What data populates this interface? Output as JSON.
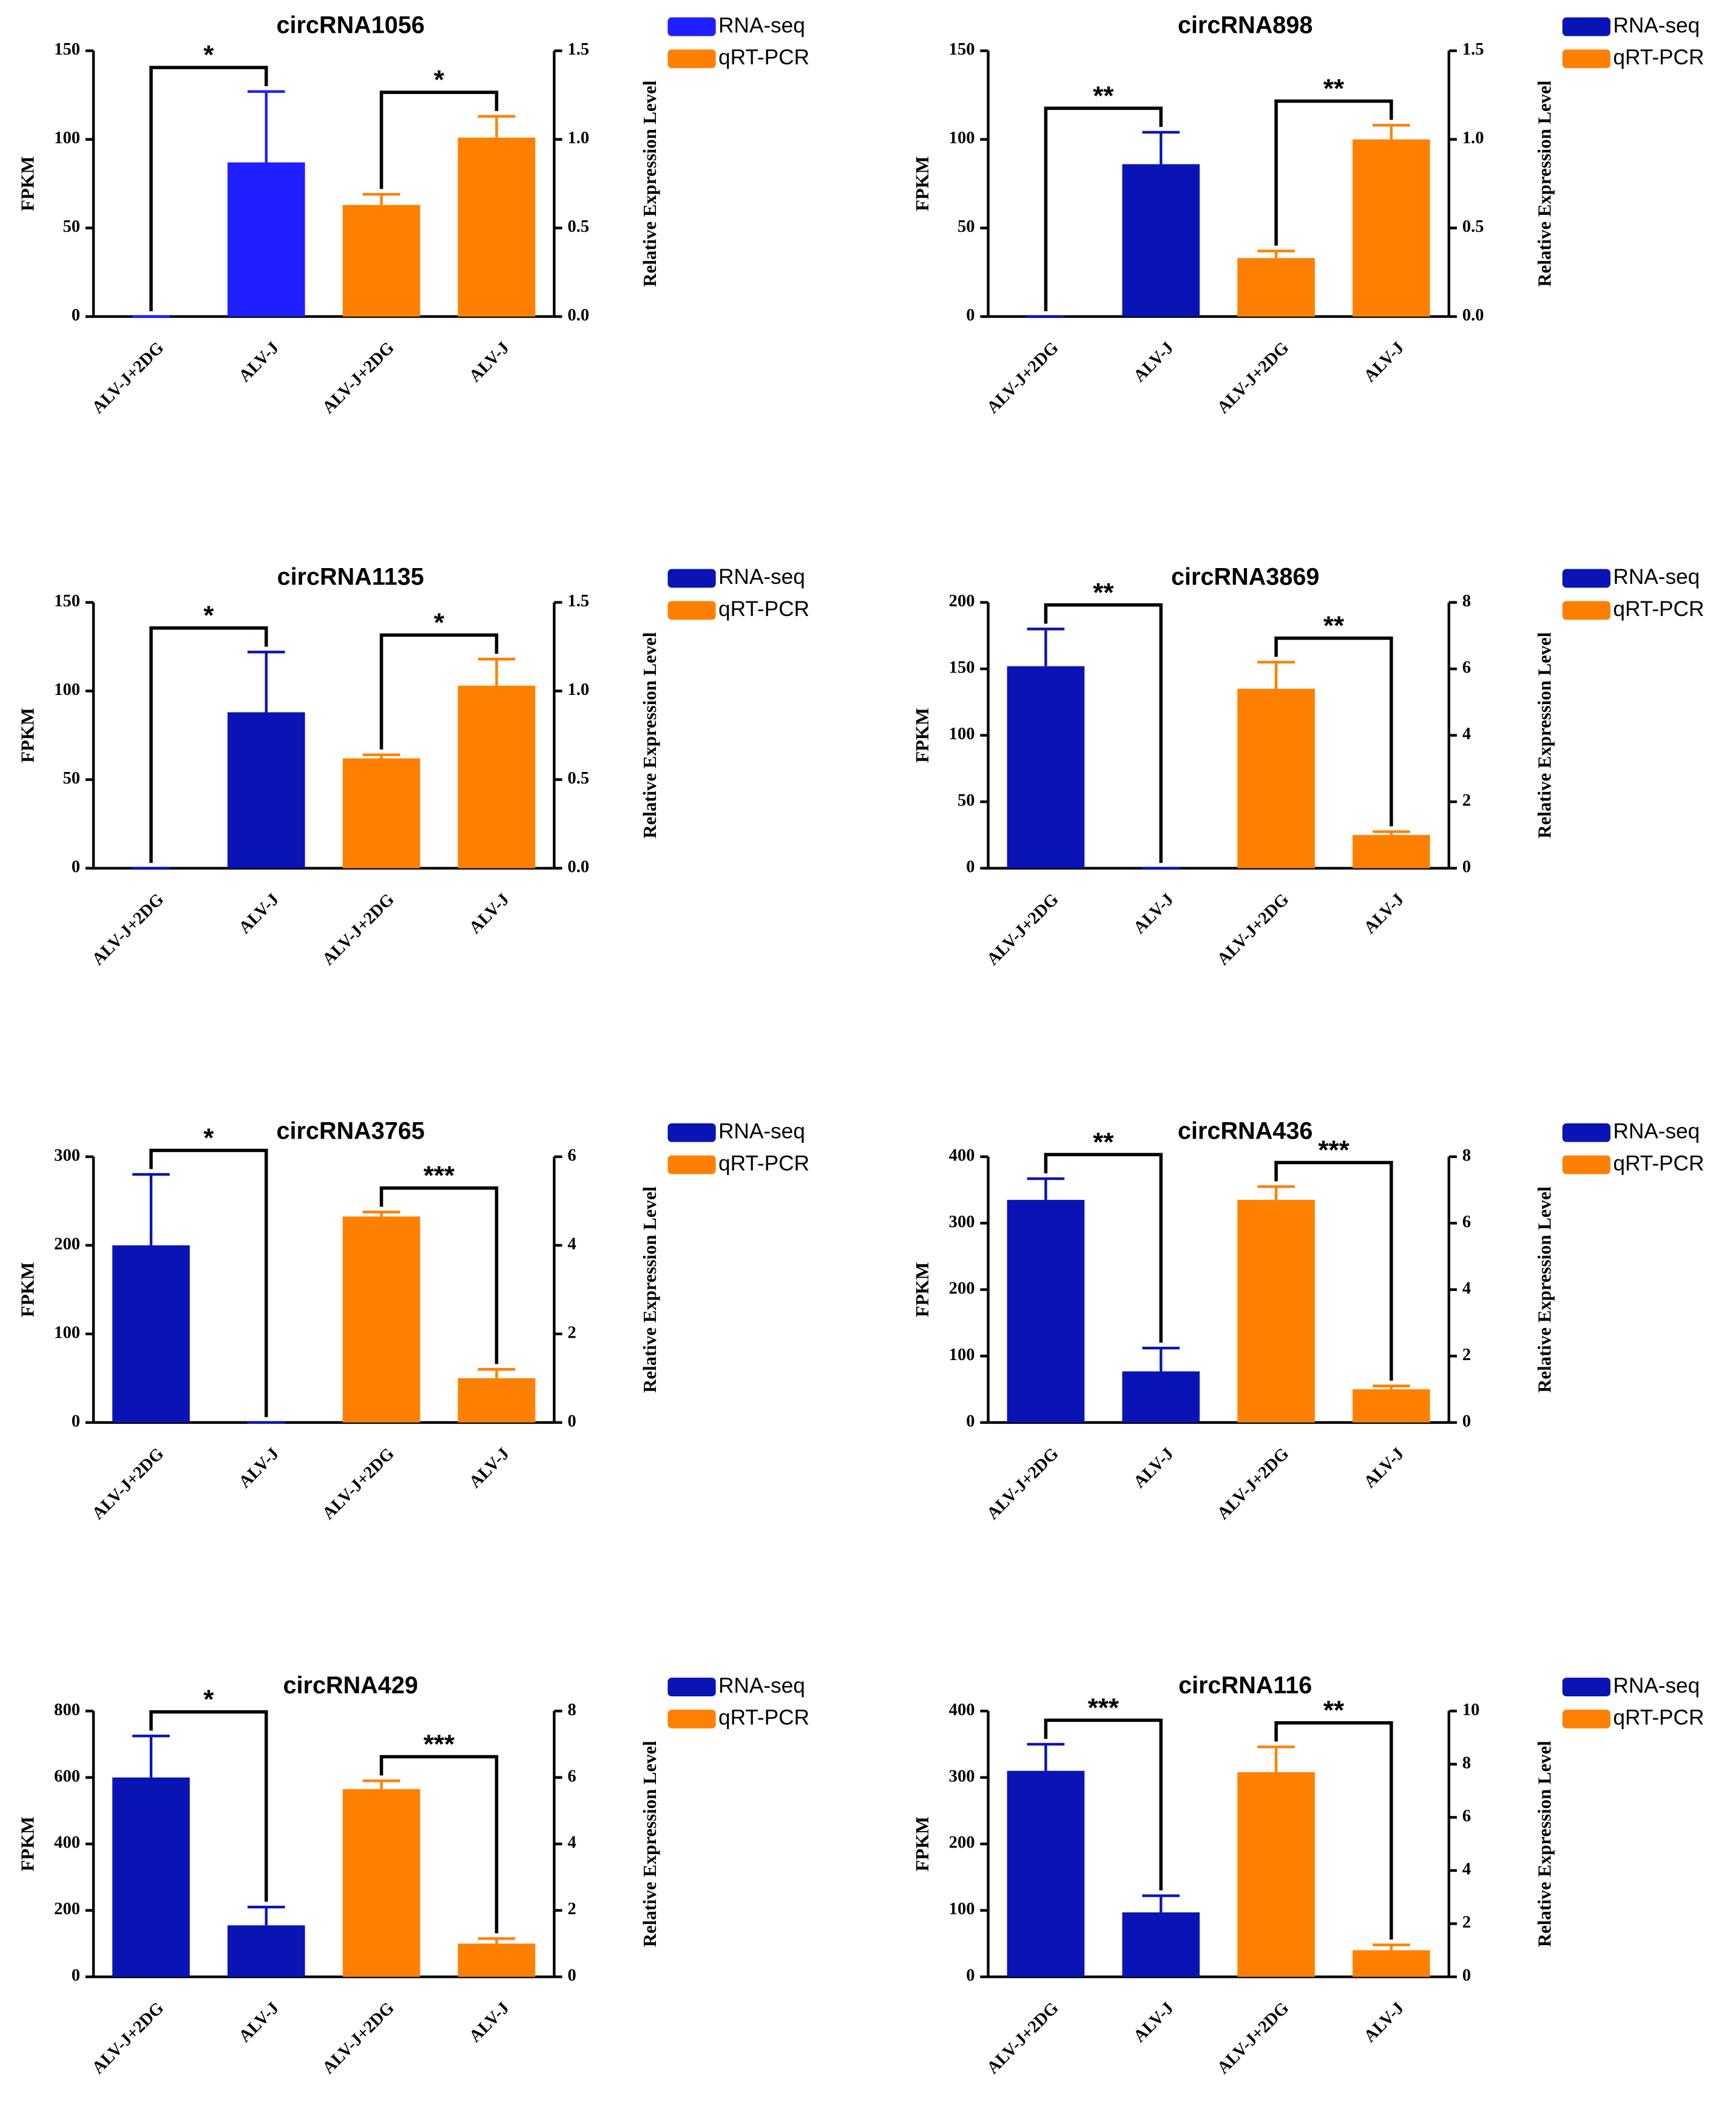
{
  "chart_data": [
    {
      "type": "bar",
      "title": "circRNA1056",
      "ylabel": "FPKM",
      "y2label": "Relative Expression Level",
      "categories": [
        "ALV-J+2DG",
        "ALV-J",
        "ALV-J+2DG",
        "ALV-J"
      ],
      "series": [
        {
          "name": "RNA-seq",
          "color": "#1f1fff",
          "axis": "y",
          "values": [
            0,
            87,
            null,
            null
          ],
          "errors": [
            0,
            40,
            null,
            null
          ]
        },
        {
          "name": "qRT-PCR",
          "color": "#ff8000",
          "axis": "y2",
          "values": [
            null,
            null,
            0.63,
            1.01
          ],
          "errors": [
            null,
            null,
            0.06,
            0.12
          ]
        }
      ],
      "annotations": [
        {
          "text": "*",
          "from": 0,
          "to": 1
        },
        {
          "text": "*",
          "from": 2,
          "to": 3
        }
      ],
      "ylim": [
        0,
        150
      ],
      "yticks": [
        0,
        50,
        100,
        150
      ],
      "y2lim": [
        0,
        1.5
      ],
      "y2ticks": [
        {
          "value": 0,
          "label": "0.0"
        },
        0.5,
        {
          "value": 1,
          "label": "1.0"
        },
        1.5
      ]
    },
    {
      "type": "bar",
      "title": "circRNA898",
      "ylabel": "FPKM",
      "y2label": "Relative Expression Level",
      "categories": [
        "ALV-J+2DG",
        "ALV-J",
        "ALV-J+2DG",
        "ALV-J"
      ],
      "series": [
        {
          "name": "RNA-seq",
          "color": "#0a14b4",
          "axis": "y",
          "values": [
            0,
            86,
            null,
            null
          ],
          "errors": [
            0,
            18,
            null,
            null
          ]
        },
        {
          "name": "qRT-PCR",
          "color": "#ff8000",
          "axis": "y2",
          "values": [
            null,
            null,
            0.33,
            1.0
          ],
          "errors": [
            null,
            null,
            0.04,
            0.08
          ]
        }
      ],
      "annotations": [
        {
          "text": "**",
          "from": 0,
          "to": 1
        },
        {
          "text": "**",
          "from": 2,
          "to": 3
        }
      ],
      "ylim": [
        0,
        150
      ],
      "yticks": [
        0,
        50,
        100,
        150
      ],
      "y2lim": [
        0,
        1.5
      ],
      "y2ticks": [
        {
          "value": 0,
          "label": "0.0"
        },
        0.5,
        {
          "value": 1,
          "label": "1.0"
        },
        1.5
      ]
    },
    {
      "type": "bar",
      "title": "circRNA1135",
      "ylabel": "FPKM",
      "y2label": "Relative Expression Level",
      "categories": [
        "ALV-J+2DG",
        "ALV-J",
        "ALV-J+2DG",
        "ALV-J"
      ],
      "series": [
        {
          "name": "RNA-seq",
          "color": "#0a14b4",
          "axis": "y",
          "values": [
            0,
            88,
            null,
            null
          ],
          "errors": [
            0,
            34,
            null,
            null
          ]
        },
        {
          "name": "qRT-PCR",
          "color": "#ff8000",
          "axis": "y2",
          "values": [
            null,
            null,
            0.62,
            1.03
          ],
          "errors": [
            null,
            null,
            0.02,
            0.15
          ]
        }
      ],
      "annotations": [
        {
          "text": "*",
          "from": 0,
          "to": 1
        },
        {
          "text": "*",
          "from": 2,
          "to": 3
        }
      ],
      "ylim": [
        0,
        150
      ],
      "yticks": [
        0,
        50,
        100,
        150
      ],
      "y2lim": [
        0,
        1.5
      ],
      "y2ticks": [
        {
          "value": 0,
          "label": "0.0"
        },
        0.5,
        {
          "value": 1,
          "label": "1.0"
        },
        1.5
      ]
    },
    {
      "type": "bar",
      "title": "circRNA3869",
      "ylabel": "FPKM",
      "y2label": "Relative Expression Level",
      "categories": [
        "ALV-J+2DG",
        "ALV-J",
        "ALV-J+2DG",
        "ALV-J"
      ],
      "series": [
        {
          "name": "RNA-seq",
          "color": "#0a14b4",
          "axis": "y",
          "values": [
            152,
            0,
            null,
            null
          ],
          "errors": [
            28,
            0,
            null,
            null
          ]
        },
        {
          "name": "qRT-PCR",
          "color": "#ff8000",
          "axis": "y2",
          "values": [
            null,
            null,
            5.4,
            1.0
          ],
          "errors": [
            null,
            null,
            0.8,
            0.1
          ]
        }
      ],
      "annotations": [
        {
          "text": "**",
          "from": 0,
          "to": 1
        },
        {
          "text": "**",
          "from": 2,
          "to": 3
        }
      ],
      "ylim": [
        0,
        200
      ],
      "yticks": [
        0,
        50,
        100,
        150,
        200
      ],
      "y2lim": [
        0,
        8
      ],
      "y2ticks": [
        0,
        2,
        4,
        6,
        8
      ]
    },
    {
      "type": "bar",
      "title": "circRNA3765",
      "ylabel": "FPKM",
      "y2label": "Relative Expression Level",
      "categories": [
        "ALV-J+2DG",
        "ALV-J",
        "ALV-J+2DG",
        "ALV-J"
      ],
      "series": [
        {
          "name": "RNA-seq",
          "color": "#0a14b4",
          "axis": "y",
          "values": [
            200,
            0,
            null,
            null
          ],
          "errors": [
            80,
            0,
            null,
            null
          ]
        },
        {
          "name": "qRT-PCR",
          "color": "#ff8000",
          "axis": "y2",
          "values": [
            null,
            null,
            4.65,
            1.0
          ],
          "errors": [
            null,
            null,
            0.1,
            0.2
          ]
        }
      ],
      "annotations": [
        {
          "text": "*",
          "from": 0,
          "to": 1
        },
        {
          "text": "***",
          "from": 2,
          "to": 3
        }
      ],
      "ylim": [
        0,
        300
      ],
      "yticks": [
        0,
        100,
        200,
        300
      ],
      "y2lim": [
        0,
        6
      ],
      "y2ticks": [
        0,
        2,
        4,
        6
      ]
    },
    {
      "type": "bar",
      "title": "circRNA436",
      "ylabel": "FPKM",
      "y2label": "Relative Expression Level",
      "categories": [
        "ALV-J+2DG",
        "ALV-J",
        "ALV-J+2DG",
        "ALV-J"
      ],
      "series": [
        {
          "name": "RNA-seq",
          "color": "#0a14b4",
          "axis": "y",
          "values": [
            335,
            77,
            null,
            null
          ],
          "errors": [
            32,
            35,
            null,
            null
          ]
        },
        {
          "name": "qRT-PCR",
          "color": "#ff8000",
          "axis": "y2",
          "values": [
            null,
            null,
            6.7,
            1.0
          ],
          "errors": [
            null,
            null,
            0.4,
            0.1
          ]
        }
      ],
      "annotations": [
        {
          "text": "**",
          "from": 0,
          "to": 1
        },
        {
          "text": "***",
          "from": 2,
          "to": 3
        }
      ],
      "ylim": [
        0,
        400
      ],
      "yticks": [
        0,
        100,
        200,
        300,
        400
      ],
      "y2lim": [
        0,
        8
      ],
      "y2ticks": [
        0,
        2,
        4,
        6,
        8
      ]
    },
    {
      "type": "bar",
      "title": "circRNA429",
      "ylabel": "FPKM",
      "y2label": "Relative Expression Level",
      "categories": [
        "ALV-J+2DG",
        "ALV-J",
        "ALV-J+2DG",
        "ALV-J"
      ],
      "series": [
        {
          "name": "RNA-seq",
          "color": "#0a14b4",
          "axis": "y",
          "values": [
            600,
            155,
            null,
            null
          ],
          "errors": [
            125,
            55,
            null,
            null
          ]
        },
        {
          "name": "qRT-PCR",
          "color": "#ff8000",
          "axis": "y2",
          "values": [
            null,
            null,
            5.65,
            1.0
          ],
          "errors": [
            null,
            null,
            0.25,
            0.15
          ]
        }
      ],
      "annotations": [
        {
          "text": "*",
          "from": 0,
          "to": 1
        },
        {
          "text": "***",
          "from": 2,
          "to": 3
        }
      ],
      "ylim": [
        0,
        800
      ],
      "yticks": [
        0,
        200,
        400,
        600,
        800
      ],
      "y2lim": [
        0,
        8
      ],
      "y2ticks": [
        0,
        2,
        4,
        6,
        8
      ]
    },
    {
      "type": "bar",
      "title": "circRNA116",
      "ylabel": "FPKM",
      "y2label": "Relative Expression Level",
      "categories": [
        "ALV-J+2DG",
        "ALV-J",
        "ALV-J+2DG",
        "ALV-J"
      ],
      "series": [
        {
          "name": "RNA-seq",
          "color": "#0a14b4",
          "axis": "y",
          "values": [
            310,
            97,
            null,
            null
          ],
          "errors": [
            40,
            25,
            null,
            null
          ]
        },
        {
          "name": "qRT-PCR",
          "color": "#ff8000",
          "axis": "y2",
          "values": [
            null,
            null,
            7.7,
            1.0
          ],
          "errors": [
            null,
            null,
            0.95,
            0.2
          ]
        }
      ],
      "annotations": [
        {
          "text": "***",
          "from": 0,
          "to": 1
        },
        {
          "text": "**",
          "from": 2,
          "to": 3
        }
      ],
      "ylim": [
        0,
        400
      ],
      "yticks": [
        0,
        100,
        200,
        300,
        400
      ],
      "y2lim": [
        0,
        10
      ],
      "y2ticks": [
        0,
        2,
        4,
        6,
        8,
        10
      ]
    }
  ]
}
